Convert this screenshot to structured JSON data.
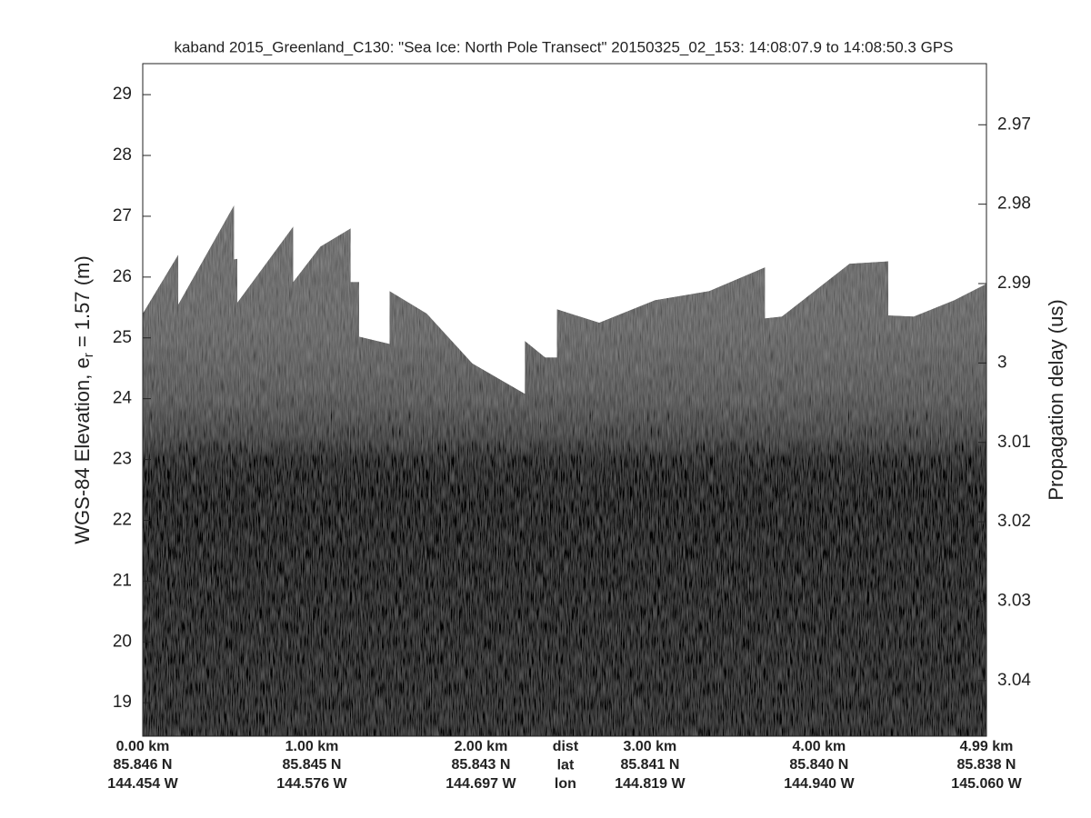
{
  "chart_data": {
    "type": "area",
    "title": "kaband 2015_Greenland_C130: \"Sea Ice: North Pole Transect\"  20150325_02_153: 14:08:07.9 to 14:08:50.3 GPS",
    "ylabel": {
      "text": "WGS-84 Elevation, e",
      "subscript": "r",
      "rest": " = 1.57 (m)"
    },
    "y2label": "Propagation delay (us)",
    "xlim": [
      0,
      4.99
    ],
    "xticks": [
      {
        "value": 0,
        "label": "0.00 km"
      },
      {
        "value": 1,
        "label": "1.00 km"
      },
      {
        "value": 2,
        "label": "2.00 km"
      },
      {
        "value": 3,
        "label": "3.00 km"
      },
      {
        "value": 4,
        "label": "4.00 km"
      },
      {
        "value": 4.99,
        "label": "4.99 km"
      }
    ],
    "lat_labels": [
      "85.846 N",
      "85.845 N",
      "85.843 N",
      "85.841 N",
      "85.840 N",
      "85.838 N"
    ],
    "lon_labels": [
      "144.454 W",
      "144.576 W",
      "144.697 W",
      "144.819 W",
      "144.940 W",
      "145.060 W"
    ],
    "row_labels": [
      "dist",
      "lat",
      "lon"
    ],
    "ylim": [
      18.45,
      29.51
    ],
    "yticks": [
      19,
      20,
      21,
      22,
      23,
      24,
      25,
      26,
      27,
      28,
      29
    ],
    "y2lim": [
      3.047,
      2.9623
    ],
    "y2ticks": [
      2.97,
      2.98,
      2.99,
      3,
      3.01,
      3.02,
      3.03,
      3.04
    ],
    "surface": {
      "x": [
        0,
        0.21,
        0.21,
        0.54,
        0.54,
        0.56,
        0.56,
        0.89,
        0.89,
        1.05,
        1.23,
        1.23,
        1.28,
        1.28,
        1.46,
        1.46,
        1.68,
        1.95,
        2.26,
        2.26,
        2.38,
        2.45,
        2.45,
        2.7,
        3.03,
        3.35,
        3.68,
        3.68,
        3.78,
        4.18,
        4.41,
        4.41,
        4.56,
        4.8,
        4.99
      ],
      "values": [
        25.4,
        26.37,
        25.55,
        27.18,
        26.29,
        26.3,
        25.58,
        26.83,
        25.92,
        26.5,
        26.8,
        25.92,
        25.92,
        25.02,
        24.9,
        25.77,
        25.4,
        24.58,
        24.08,
        24.95,
        24.68,
        24.68,
        25.47,
        25.25,
        25.62,
        25.77,
        26.16,
        25.32,
        25.35,
        26.22,
        26.26,
        25.37,
        25.35,
        25.62,
        25.89
      ]
    }
  }
}
